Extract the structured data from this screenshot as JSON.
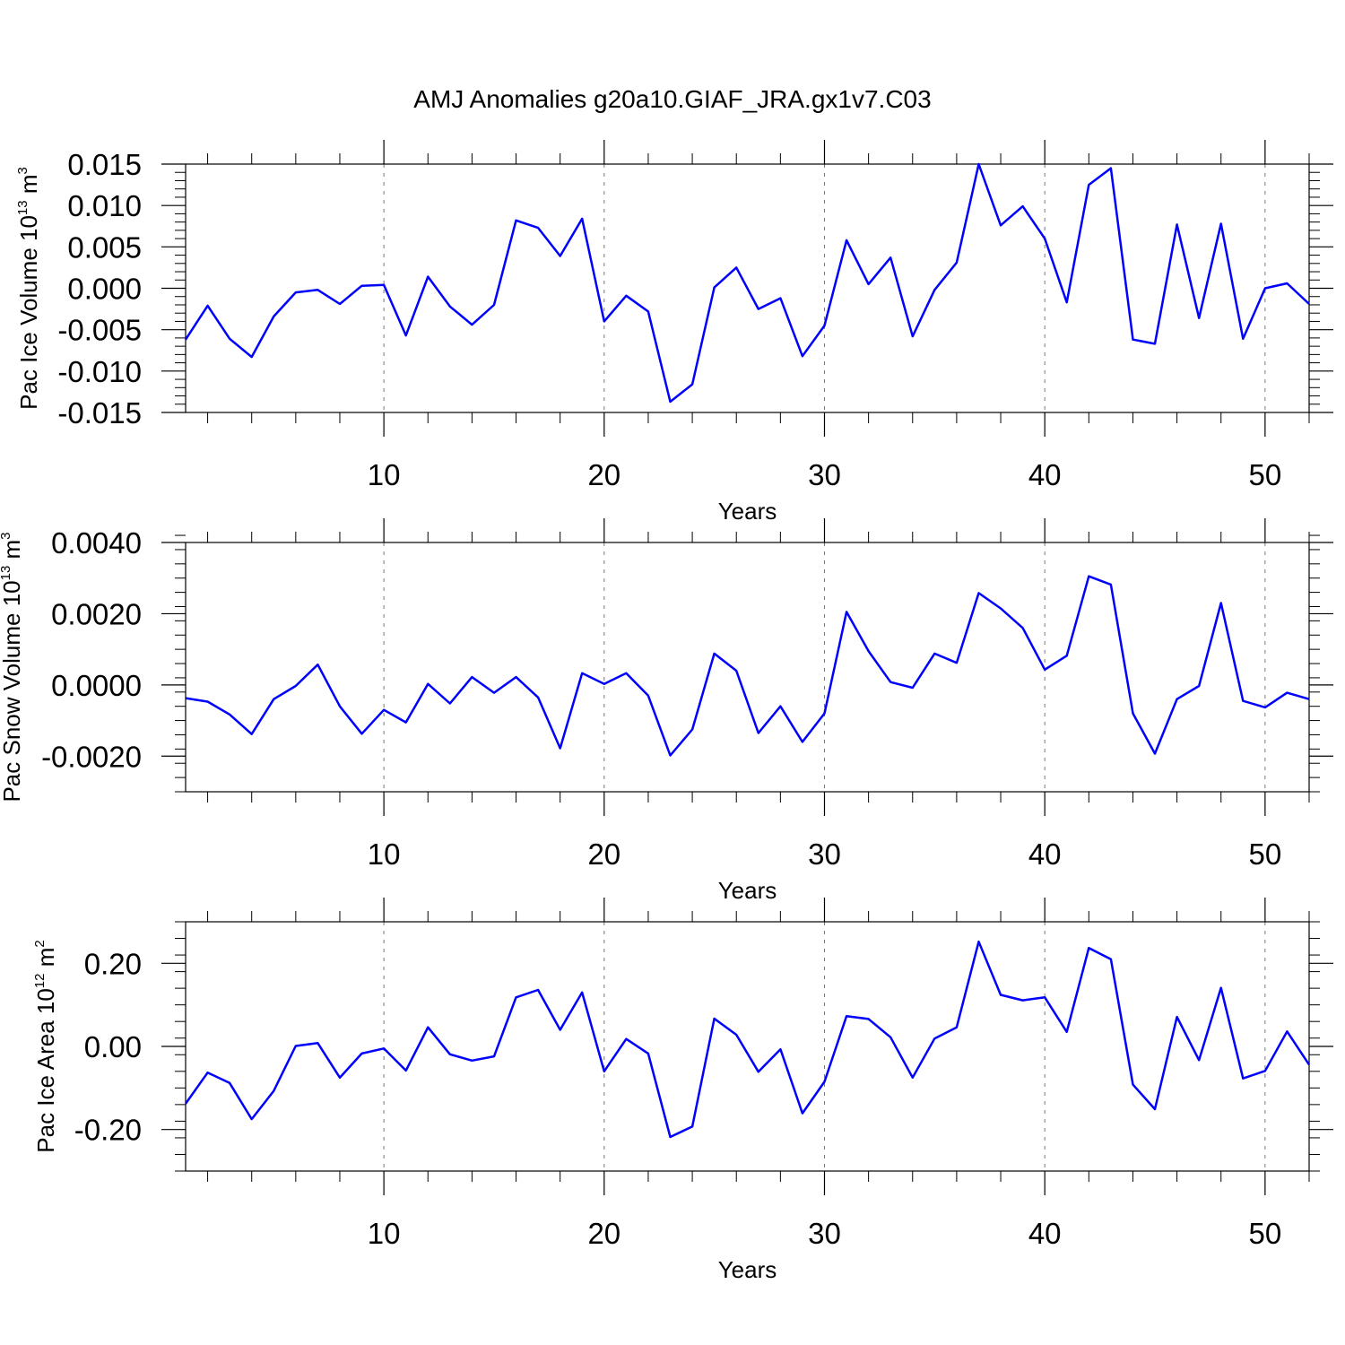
{
  "title": "AMJ Anomalies g20a10.GIAF_JRA.gx1v7.C03",
  "line_color": "#0000ff",
  "gridline_color": "#777777",
  "chart_data": [
    {
      "type": "line",
      "xlabel": "Years",
      "ylabel": {
        "text": "Pac Ice Volume 10",
        "sup_exp": "13",
        "unit": " m",
        "sup_unit": "3"
      },
      "xlim": [
        1,
        52
      ],
      "ylim": [
        -0.015,
        0.015
      ],
      "xticks": [
        10,
        20,
        30,
        40,
        50
      ],
      "xtick_labels": [
        "10",
        "20",
        "30",
        "40",
        "50"
      ],
      "yticks": [
        -0.015,
        -0.01,
        -0.005,
        0,
        0.005,
        0.01,
        0.015
      ],
      "ytick_labels": [
        "-0.015",
        "-0.010",
        "-0.005",
        "0.000",
        "0.005",
        "0.010",
        "0.015"
      ],
      "grid": "vertical dashed at major x ticks",
      "x": [
        1,
        2,
        3,
        4,
        5,
        6,
        7,
        8,
        9,
        10,
        11,
        12,
        13,
        14,
        15,
        16,
        17,
        18,
        19,
        20,
        21,
        22,
        23,
        24,
        25,
        26,
        27,
        28,
        29,
        30,
        31,
        32,
        33,
        34,
        35,
        36,
        37,
        38,
        39,
        40,
        41,
        42,
        43,
        44,
        45,
        46,
        47,
        48,
        49,
        50,
        51,
        52
      ],
      "series": [
        {
          "values": [
            -0.0062,
            -0.0021,
            -0.0061,
            -0.0083,
            -0.0034,
            -0.0005,
            -0.0002,
            -0.0019,
            0.0003,
            0.0004,
            -0.0057,
            0.0014,
            -0.0022,
            -0.0044,
            -0.002,
            0.0082,
            0.0073,
            0.0039,
            0.0084,
            -0.004,
            -0.0009,
            -0.0028,
            -0.0137,
            -0.0116,
            0.0001,
            0.0025,
            -0.0025,
            -0.0012,
            -0.0082,
            -0.0045,
            0.0058,
            0.0005,
            0.0037,
            -0.0058,
            -0.0002,
            0.0031,
            0.015,
            0.0076,
            0.0099,
            0.006,
            -0.0017,
            0.0125,
            0.0145,
            -0.0062,
            -0.0067,
            0.0077,
            -0.0036,
            0.0078,
            -0.0061,
            0.0,
            0.0006,
            -0.0019
          ]
        }
      ]
    },
    {
      "type": "line",
      "xlabel": "Years",
      "ylabel": {
        "text": "Pac Snow Volume 10",
        "sup_exp": "13",
        "unit": " m",
        "sup_unit": "3"
      },
      "xlim": [
        1,
        52
      ],
      "ylim": [
        -0.003,
        0.004
      ],
      "xticks": [
        10,
        20,
        30,
        40,
        50
      ],
      "xtick_labels": [
        "10",
        "20",
        "30",
        "40",
        "50"
      ],
      "yticks": [
        -0.002,
        0,
        0.002,
        0.004
      ],
      "ytick_labels": [
        "-0.0020",
        "0.0000",
        "0.0020",
        "0.0040"
      ],
      "grid": "vertical dashed at major x ticks",
      "x": [
        1,
        2,
        3,
        4,
        5,
        6,
        7,
        8,
        9,
        10,
        11,
        12,
        13,
        14,
        15,
        16,
        17,
        18,
        19,
        20,
        21,
        22,
        23,
        24,
        25,
        26,
        27,
        28,
        29,
        30,
        31,
        32,
        33,
        34,
        35,
        36,
        37,
        38,
        39,
        40,
        41,
        42,
        43,
        44,
        45,
        46,
        47,
        48,
        49,
        50,
        51,
        52
      ],
      "series": [
        {
          "values": [
            -0.00037,
            -0.00047,
            -0.00083,
            -0.00138,
            -0.0004,
            -3e-05,
            0.00057,
            -0.0006,
            -0.00137,
            -0.0007,
            -0.00105,
            3e-05,
            -0.00052,
            0.00022,
            -0.00022,
            0.00022,
            -0.00035,
            -0.00178,
            0.00033,
            3e-05,
            0.00033,
            -0.0003,
            -0.00198,
            -0.00125,
            0.00088,
            0.0004,
            -0.00135,
            -0.0006,
            -0.0016,
            -0.0008,
            0.00205,
            0.00095,
            8e-05,
            -8e-05,
            0.00088,
            0.00062,
            0.00258,
            0.00215,
            0.0016,
            0.00043,
            0.00082,
            0.00305,
            0.00282,
            -0.0008,
            -0.00193,
            -0.0004,
            -3e-05,
            0.0023,
            -0.00045,
            -0.00063,
            -0.00022,
            -0.0004
          ]
        }
      ]
    },
    {
      "type": "line",
      "xlabel": "Years",
      "ylabel": {
        "text": "Pac Ice Area 10",
        "sup_exp": "12",
        "unit": " m",
        "sup_unit": "2"
      },
      "xlim": [
        1,
        52
      ],
      "ylim": [
        -0.3,
        0.3
      ],
      "xticks": [
        10,
        20,
        30,
        40,
        50
      ],
      "xtick_labels": [
        "10",
        "20",
        "30",
        "40",
        "50"
      ],
      "yticks": [
        -0.2,
        0,
        0.2
      ],
      "ytick_labels": [
        "-0.20",
        "0.00",
        "0.20"
      ],
      "grid": "vertical dashed at major x ticks",
      "x": [
        1,
        2,
        3,
        4,
        5,
        6,
        7,
        8,
        9,
        10,
        11,
        12,
        13,
        14,
        15,
        16,
        17,
        18,
        19,
        20,
        21,
        22,
        23,
        24,
        25,
        26,
        27,
        28,
        29,
        30,
        31,
        32,
        33,
        34,
        35,
        36,
        37,
        38,
        39,
        40,
        41,
        42,
        43,
        44,
        45,
        46,
        47,
        48,
        49,
        50,
        51,
        52
      ],
      "series": [
        {
          "values": [
            -0.138,
            -0.063,
            -0.088,
            -0.175,
            -0.107,
            0.001,
            0.008,
            -0.075,
            -0.017,
            -0.005,
            -0.058,
            0.046,
            -0.019,
            -0.034,
            -0.024,
            0.118,
            0.136,
            0.04,
            0.13,
            -0.06,
            0.018,
            -0.017,
            -0.218,
            -0.193,
            0.067,
            0.028,
            -0.061,
            -0.007,
            -0.161,
            -0.085,
            0.073,
            0.066,
            0.022,
            -0.075,
            0.019,
            0.046,
            0.252,
            0.124,
            0.111,
            0.118,
            0.035,
            0.237,
            0.21,
            -0.092,
            -0.151,
            0.071,
            -0.033,
            0.141,
            -0.077,
            -0.059,
            0.036,
            -0.044
          ]
        }
      ]
    }
  ]
}
